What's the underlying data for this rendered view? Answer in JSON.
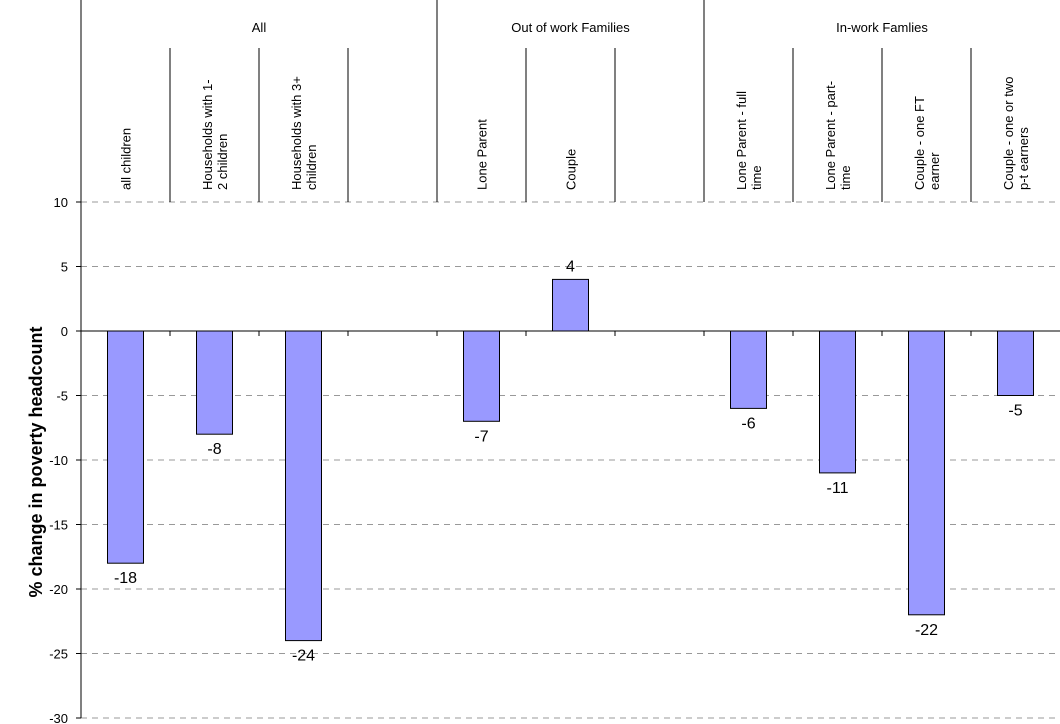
{
  "chart_data": {
    "type": "bar",
    "title": "",
    "xlabel": "",
    "ylabel": "% change in poverty headcount",
    "ylim": [
      -30,
      10
    ],
    "yticks": [
      10,
      5,
      0,
      -5,
      -10,
      -15,
      -20,
      -25,
      -30
    ],
    "grid": true,
    "bar_color": "#9999ff",
    "groups": [
      {
        "name": "All",
        "start": 0,
        "end": 4
      },
      {
        "name": "Out of work Families",
        "start": 4,
        "end": 7
      },
      {
        "name": "In-work Famlies",
        "start": 7,
        "end": 11
      }
    ],
    "categories": [
      "all children",
      "Households with 1-\n2 children",
      "Households with 3+\nchildren",
      "",
      "Lone Parent",
      "Couple",
      "",
      "Lone Parent - full\ntime",
      "Lone Parent - part-\ntime",
      "Couple - one FT\nearner",
      "Couple - one or two\np-t earners"
    ],
    "values": [
      -18,
      -8,
      -24,
      null,
      -7,
      4,
      null,
      -6,
      -11,
      -22,
      -5
    ]
  }
}
